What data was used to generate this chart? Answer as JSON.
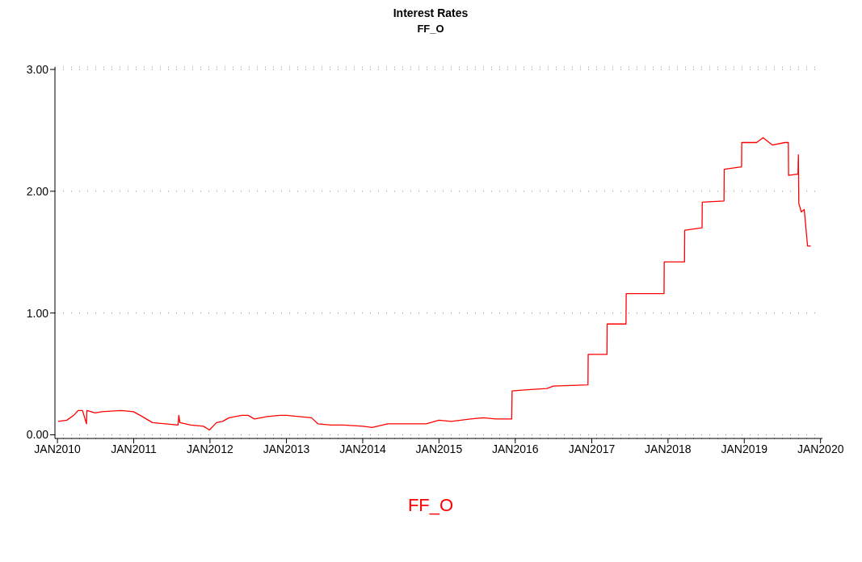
{
  "chart_data": {
    "type": "line",
    "title": "Interest Rates",
    "subtitle": "FF_O",
    "x": [
      "2010-01-04",
      "2010-02-15",
      "2010-03-20",
      "2010-04-10",
      "2010-05-01",
      "2010-05-20",
      "2010-05-22",
      "2010-07-01",
      "2010-08-01",
      "2010-11-01",
      "2010-12-31",
      "2011-02-01",
      "2011-04-01",
      "2011-06-01",
      "2011-08-01",
      "2011-08-05",
      "2011-08-10",
      "2011-10-01",
      "2011-12-01",
      "2011-12-30",
      "2012-02-01",
      "2012-03-01",
      "2012-04-01",
      "2012-06-01",
      "2012-07-01",
      "2012-08-01",
      "2012-10-01",
      "2012-12-01",
      "2013-01-01",
      "2013-03-01",
      "2013-05-01",
      "2013-06-01",
      "2013-08-01",
      "2013-10-01",
      "2014-01-01",
      "2014-02-15",
      "2014-05-01",
      "2014-08-01",
      "2014-11-01",
      "2015-01-01",
      "2015-03-01",
      "2015-06-01",
      "2015-08-01",
      "2015-10-01",
      "2015-12-15",
      "2015-12-17",
      "2016-03-01",
      "2016-06-01",
      "2016-07-01",
      "2016-12-14",
      "2016-12-15",
      "2017-03-15",
      "2017-03-16",
      "2017-06-14",
      "2017-06-15",
      "2017-12-13",
      "2017-12-14",
      "2018-03-21",
      "2018-03-22",
      "2018-06-13",
      "2018-06-14",
      "2018-09-26",
      "2018-09-27",
      "2018-12-19",
      "2018-12-20",
      "2019-03-01",
      "2019-04-01",
      "2019-05-15",
      "2019-07-15",
      "2019-07-31",
      "2019-08-01",
      "2019-09-15",
      "2019-09-17",
      "2019-09-19",
      "2019-10-01",
      "2019-10-15",
      "2019-10-31",
      "2019-11-15"
    ],
    "series": [
      {
        "name": "FF_O",
        "color": "#ff0000",
        "values": [
          0.11,
          0.12,
          0.16,
          0.2,
          0.2,
          0.09,
          0.2,
          0.18,
          0.19,
          0.2,
          0.19,
          0.16,
          0.1,
          0.09,
          0.08,
          0.16,
          0.1,
          0.08,
          0.07,
          0.04,
          0.1,
          0.11,
          0.14,
          0.16,
          0.16,
          0.13,
          0.15,
          0.16,
          0.16,
          0.15,
          0.14,
          0.09,
          0.08,
          0.08,
          0.07,
          0.06,
          0.09,
          0.09,
          0.09,
          0.12,
          0.11,
          0.13,
          0.14,
          0.13,
          0.13,
          0.36,
          0.37,
          0.38,
          0.4,
          0.41,
          0.66,
          0.66,
          0.91,
          0.91,
          1.16,
          1.16,
          1.42,
          1.42,
          1.68,
          1.7,
          1.91,
          1.92,
          2.18,
          2.2,
          2.4,
          2.4,
          2.44,
          2.38,
          2.4,
          2.4,
          2.13,
          2.14,
          2.3,
          1.9,
          1.83,
          1.85,
          1.55,
          1.55
        ]
      }
    ],
    "xlim": [
      "2009-12-20",
      "2020-01-10"
    ],
    "xticks": [
      {
        "value": "2010-01-01",
        "label": "JAN2010"
      },
      {
        "value": "2011-01-01",
        "label": "JAN2011"
      },
      {
        "value": "2012-01-01",
        "label": "JAN2012"
      },
      {
        "value": "2013-01-01",
        "label": "JAN2013"
      },
      {
        "value": "2014-01-01",
        "label": "JAN2014"
      },
      {
        "value": "2015-01-01",
        "label": "JAN2015"
      },
      {
        "value": "2016-01-01",
        "label": "JAN2016"
      },
      {
        "value": "2017-01-01",
        "label": "JAN2017"
      },
      {
        "value": "2018-01-01",
        "label": "JAN2018"
      },
      {
        "value": "2019-01-01",
        "label": "JAN2019"
      },
      {
        "value": "2020-01-01",
        "label": "JAN2020"
      }
    ],
    "ylim": [
      -0.03,
      3.02
    ],
    "yticks": [
      {
        "value": 0,
        "label": "0.00"
      },
      {
        "value": 1,
        "label": "1.00"
      },
      {
        "value": 2,
        "label": "2.00"
      },
      {
        "value": 3,
        "label": "3.00"
      }
    ],
    "grid": "y",
    "legend": "bottom",
    "marker": "none",
    "line_style": "solid"
  }
}
